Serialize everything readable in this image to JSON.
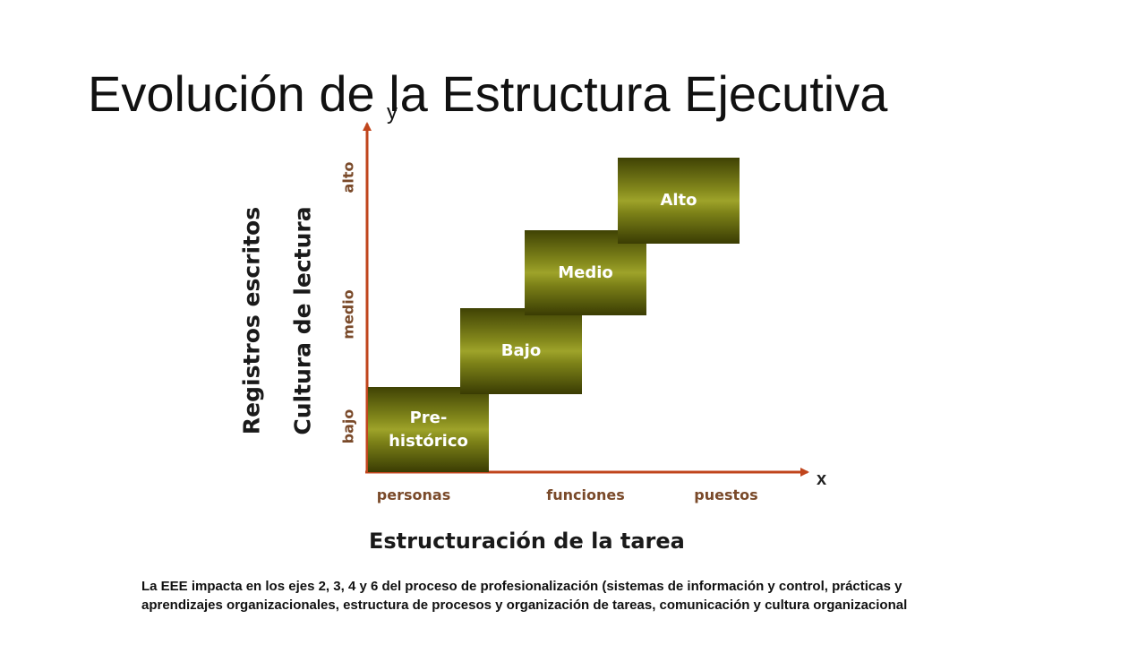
{
  "title": "Evolución de la Estructura Ejecutiva",
  "axes": {
    "y_symbol": "y",
    "x_symbol": "x",
    "y_label_outer": "Registros escritos",
    "y_label_inner": "Cultura de lectura",
    "y_ticks": [
      "bajo",
      "medio",
      "alto"
    ],
    "x_ticks": [
      "personas",
      "funciones",
      "puestos"
    ],
    "x_label": "Estructuración de la tarea",
    "axis_color": "#c0451c"
  },
  "steps": [
    {
      "line1": "Pre-",
      "line2": "histórico"
    },
    {
      "line1": "Bajo",
      "line2": ""
    },
    {
      "line1": "Medio",
      "line2": ""
    },
    {
      "line1": "Alto",
      "line2": ""
    }
  ],
  "note": "La EEE impacta en los ejes 2, 3, 4 y 6 del proceso de profesionalización (sistemas de información y control, prácticas y aprendizajes organizacionales, estructura de procesos y organización de tareas, comunicación y cultura organizacional",
  "colors": {
    "step_dark": "#3f4204",
    "step_light": "#9ea32a",
    "tick_label": "#7a4a2a"
  }
}
